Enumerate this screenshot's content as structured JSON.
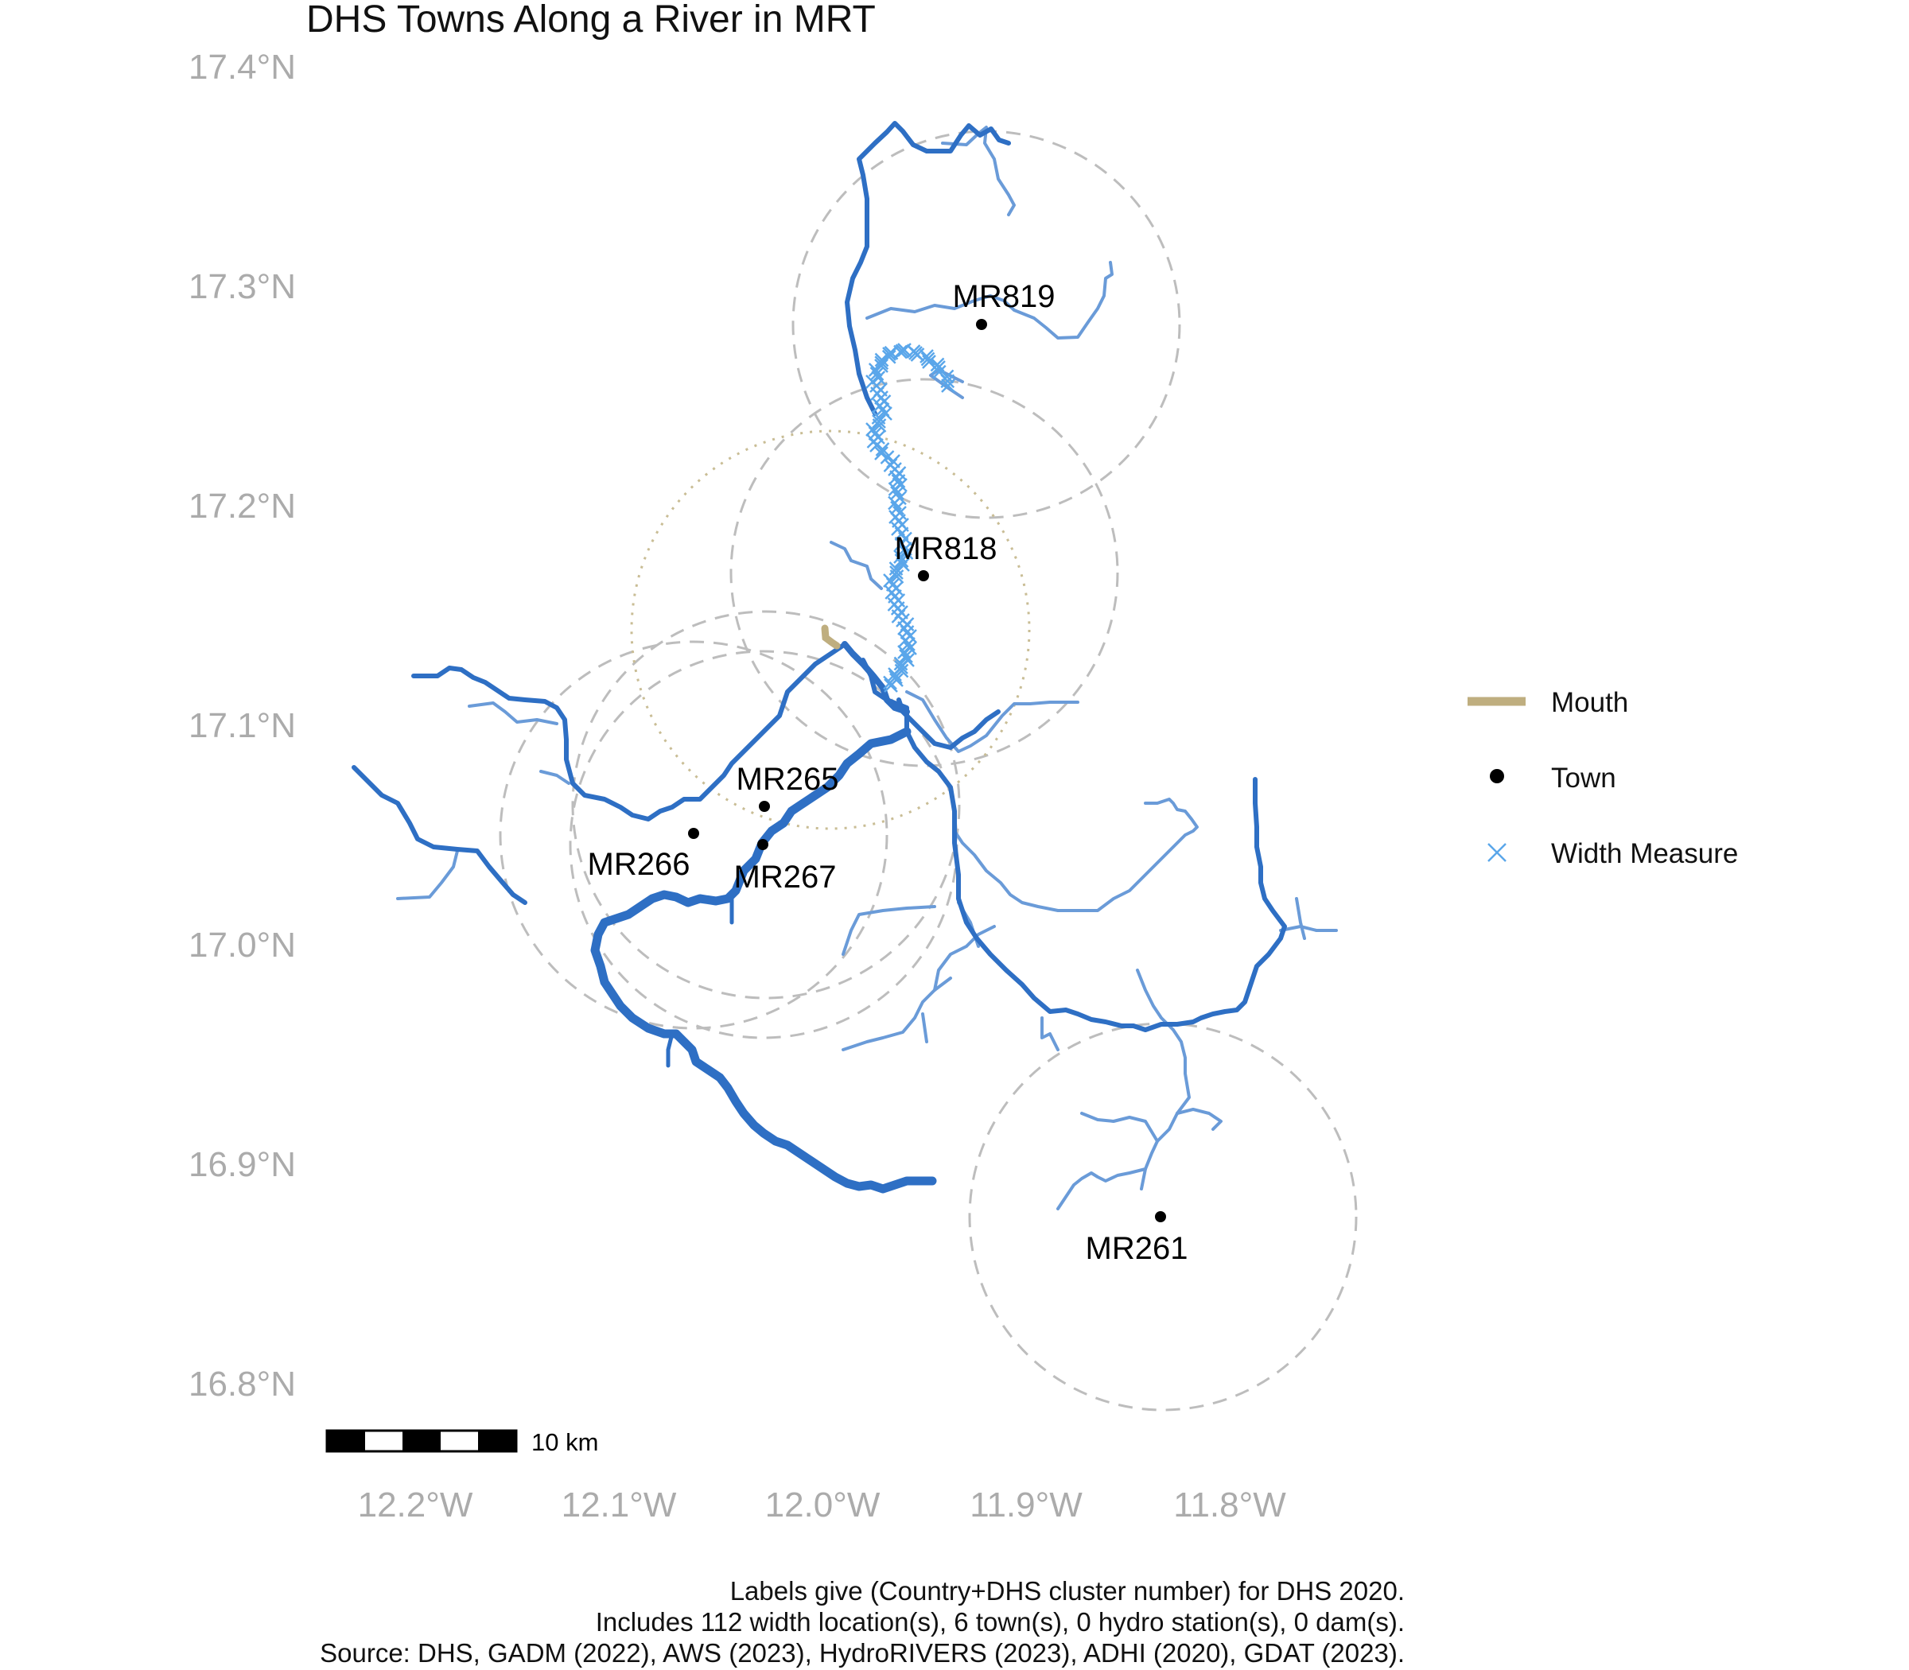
{
  "title": "DHS Towns Along a River in MRT",
  "axes": {
    "y_ticks": [
      "17.4°N",
      "17.3°N",
      "17.2°N",
      "17.1°N",
      "17.0°N",
      "16.9°N",
      "16.8°N"
    ],
    "x_ticks": [
      "12.2°W",
      "12.1°W",
      "12.0°W",
      "11.9°W",
      "11.8°W"
    ]
  },
  "towns": [
    {
      "id": "MR819",
      "lon": -11.92,
      "lat": 17.283
    },
    {
      "id": "MR818",
      "lon": -11.95,
      "lat": 17.167
    },
    {
      "id": "MR265",
      "lon": -12.03,
      "lat": 17.061
    },
    {
      "id": "MR266",
      "lon": -12.06,
      "lat": 17.048
    },
    {
      "id": "MR267",
      "lon": -12.03,
      "lat": 17.043
    },
    {
      "id": "MR261",
      "lon": -11.83,
      "lat": 16.873
    }
  ],
  "legend": {
    "mouth": "Mouth",
    "town": "Town",
    "width": "Width Measure"
  },
  "scale_bar": {
    "label": "10 km"
  },
  "caption": {
    "line1": "Labels give (Country+DHS cluster number) for DHS 2020.",
    "line2": "Includes 112 width location(s), 6 town(s), 0 hydro station(s), 0 dam(s).",
    "line3": "Source: DHS, GADM (2022), AWS (2023), HydroRIVERS (2023), ADHI (2020), GDAT (2023)."
  },
  "colors": {
    "river_main": "#2e6fc4",
    "river_trib": "#6a9bd8",
    "width_measure": "#5aa6ea",
    "mouth": "#bfae7f",
    "buffer_circle": "#bdbdbd",
    "mouth_circle": "#c9bd95",
    "town": "#000000"
  }
}
